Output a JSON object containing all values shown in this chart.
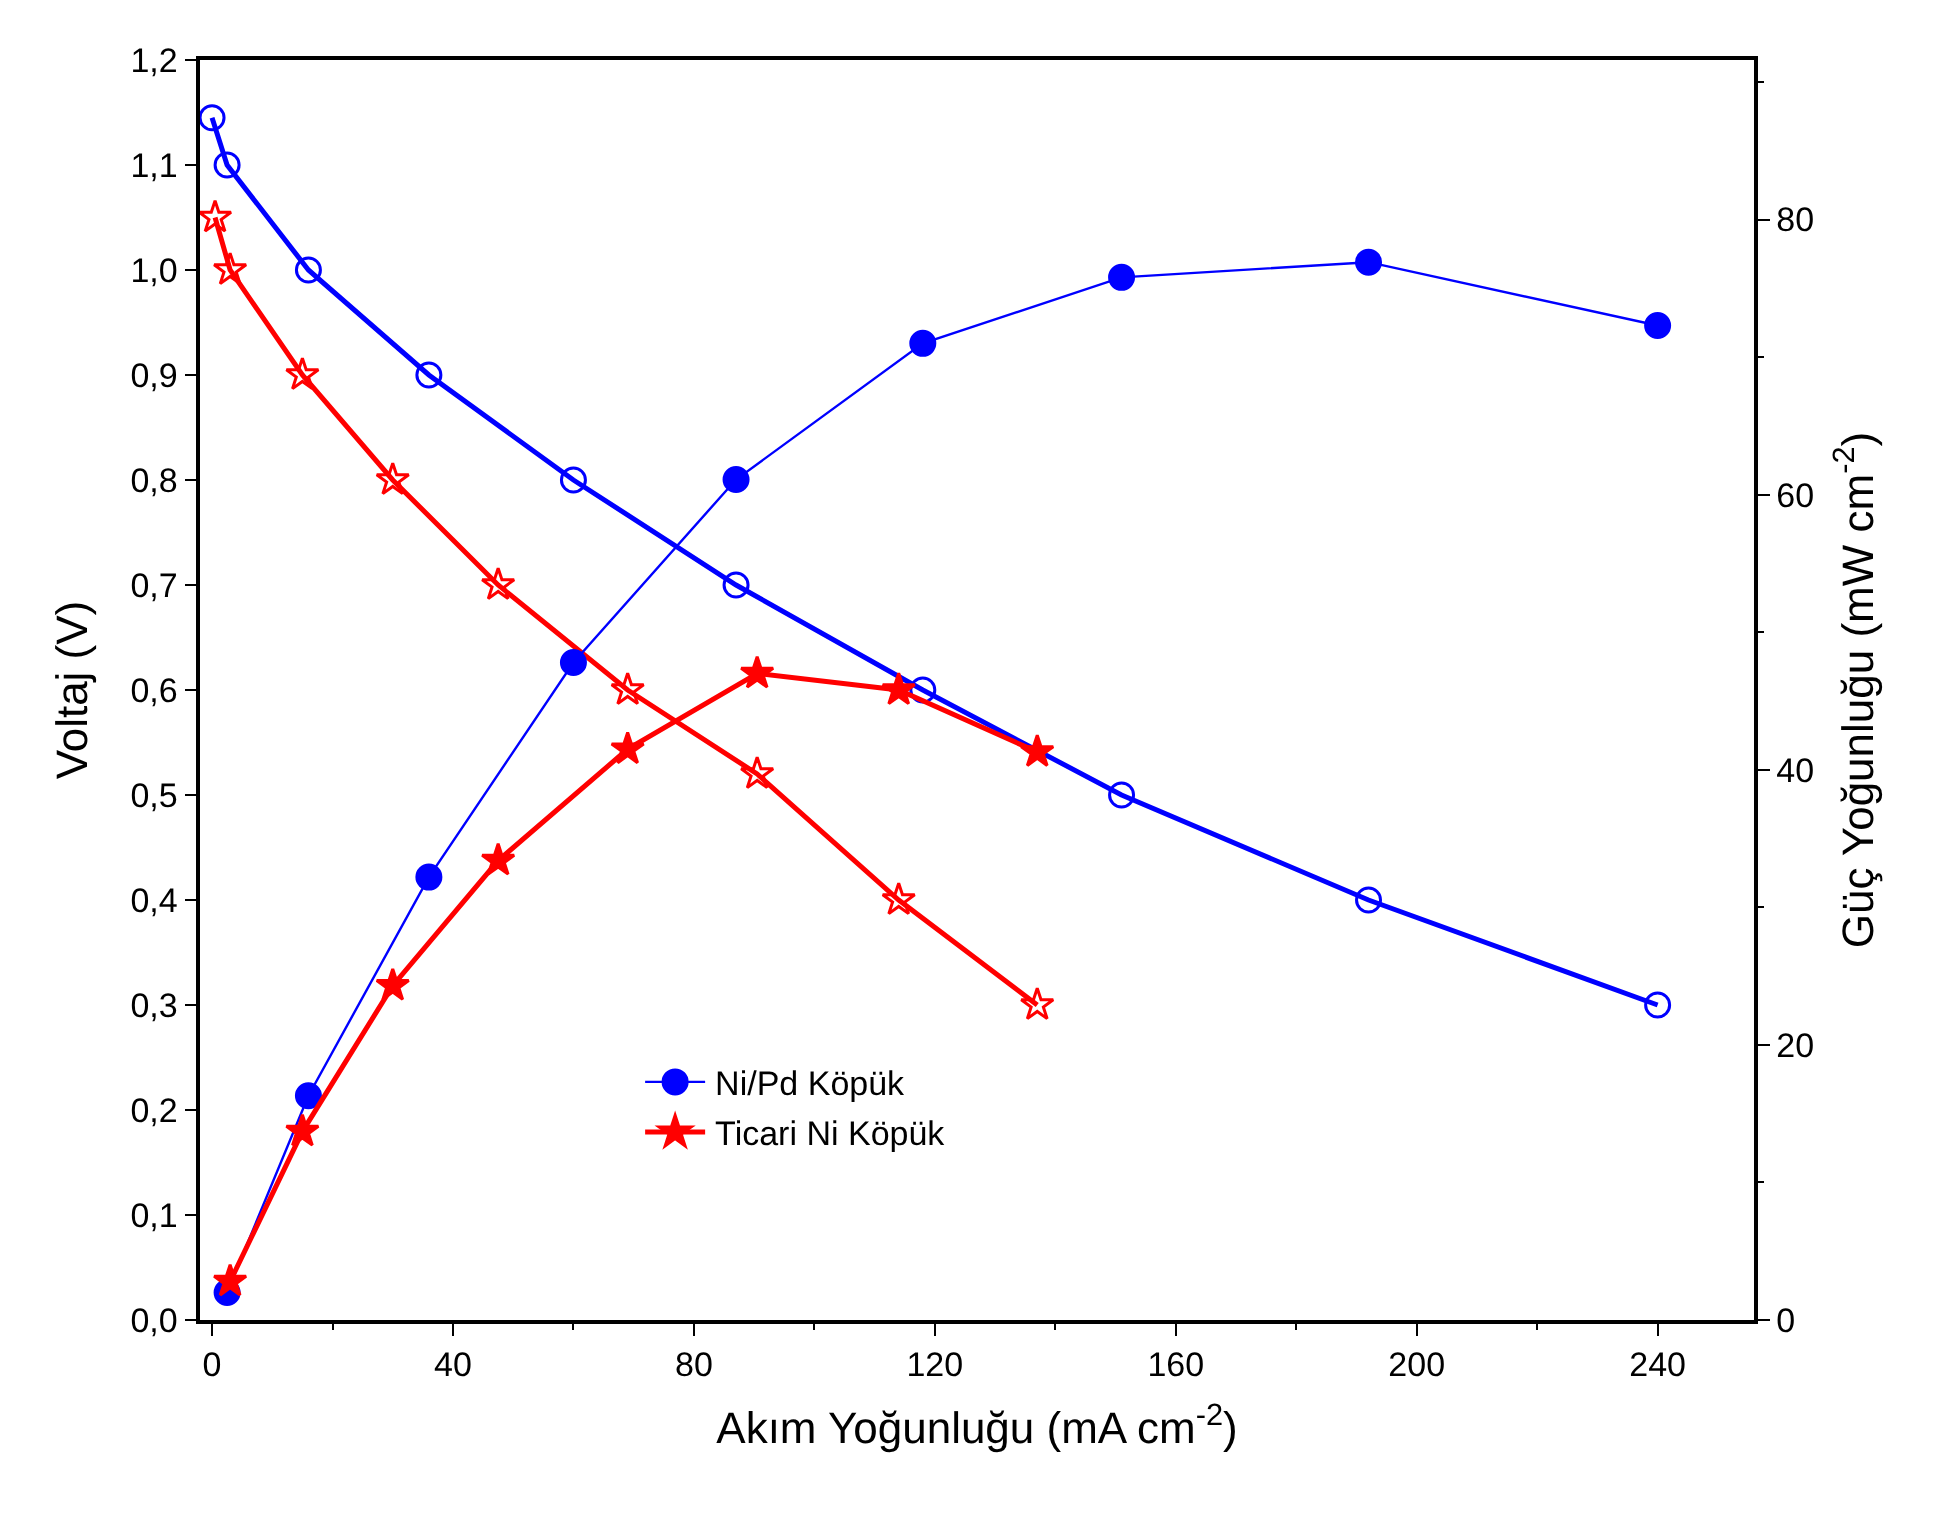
{
  "chart_data": {
    "type": "line",
    "xlabel": "Akım Yoğunluğu (mA cm$^{-2}$)",
    "ylabel": "Voltaj (V)",
    "y2label": "Güç Yoğunluğu (mW cm$^{-2}$)",
    "xlim": [
      -2,
      256
    ],
    "xticks": [
      0,
      40,
      80,
      120,
      160,
      200,
      240
    ],
    "ylim": [
      0,
      1.2
    ],
    "yticks": [
      {
        "value": 0,
        "label": "0,0"
      },
      {
        "value": 0.1,
        "label": "0,1"
      },
      {
        "value": 0.2,
        "label": "0,2"
      },
      {
        "value": 0.3,
        "label": "0,3"
      },
      {
        "value": 0.4,
        "label": "0,4"
      },
      {
        "value": 0.5,
        "label": "0,5"
      },
      {
        "value": 0.6,
        "label": "0,6"
      },
      {
        "value": 0.7,
        "label": "0,7"
      },
      {
        "value": 0.8,
        "label": "0,8"
      },
      {
        "value": 0.9,
        "label": "0,9"
      },
      {
        "value": 1.0,
        "label": "1,0"
      },
      {
        "value": 1.1,
        "label": "1,1"
      },
      {
        "value": 1.2,
        "label": "1,2"
      }
    ],
    "y2lim": [
      0,
      91.6
    ],
    "y2ticks": [
      0,
      20,
      40,
      60,
      80
    ],
    "legend": "bottom",
    "line_style": "solid",
    "series": [
      {
        "color": "#0000ff",
        "marker": "circle",
        "x": [
          0,
          2.5,
          16,
          36,
          60,
          87,
          118,
          151,
          192,
          240
        ],
        "values": [
          1.145,
          1.1,
          1.0,
          0.9,
          0.8,
          0.7,
          0.6,
          0.5,
          0.4,
          0.3
        ]
      },
      {
        "color": "#ff0000",
        "marker": "star",
        "x": [
          0.5,
          3,
          15,
          30,
          47.5,
          69,
          90.5,
          114,
          137
        ],
        "values": [
          1.05,
          1.0,
          0.9,
          0.8,
          0.7,
          0.6,
          0.52,
          0.4,
          0.3
        ]
      },
      {
        "name": "Ni/Pd Köpük",
        "color": "#0000ff",
        "marker": "circle",
        "axis": "y2",
        "x": [
          2.5,
          16,
          36,
          60,
          87,
          118,
          151,
          192,
          240
        ],
        "values": [
          2,
          16.3,
          32.2,
          47.8,
          61.1,
          71,
          75.8,
          76.9,
          72.3
        ]
      },
      {
        "name": "Ticari Ni Köpük",
        "color": "#ff0000",
        "marker": "star",
        "axis": "y2",
        "x": [
          3,
          15,
          30,
          47.5,
          69,
          90.5,
          114,
          137
        ],
        "values": [
          2.8,
          13.7,
          24.3,
          33.4,
          41.5,
          47,
          45.8,
          41.3
        ]
      }
    ]
  }
}
